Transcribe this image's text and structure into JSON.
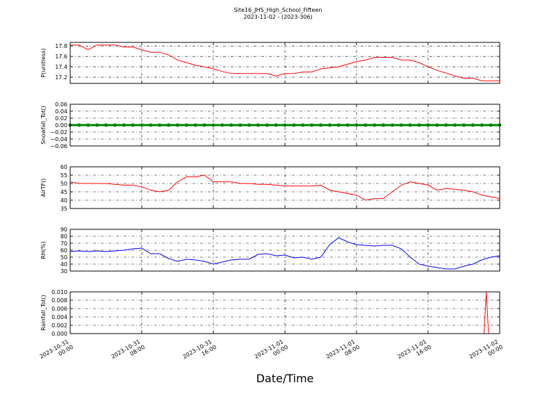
{
  "header": {
    "title": "Site16_JHS_High_School_Fifteen",
    "subtitle": "2023-11-02 - (2023-306)"
  },
  "chart_data": [
    {
      "type": "line",
      "ylabel": "P(unitless)",
      "color": "#ff0000",
      "xlim": [
        "2023-10-31 00:00",
        "2023-11-02 00:00"
      ],
      "xticks": [
        "2023-10-31 00:00",
        "2023-10-31 08:00",
        "2023-10-31 16:00",
        "2023-11-01 00:00",
        "2023-11-01 08:00",
        "2023-11-01 16:00",
        "2023-11-02 00:00"
      ],
      "ylim": [
        17.08,
        17.87
      ],
      "yticks": [
        17.2,
        17.4,
        17.6,
        17.8
      ],
      "grid": true,
      "x": [
        "2023-10-31 00:00",
        "2023-10-31 01:00",
        "2023-10-31 02:00",
        "2023-10-31 03:00",
        "2023-10-31 04:00",
        "2023-10-31 05:00",
        "2023-10-31 06:00",
        "2023-10-31 07:00",
        "2023-10-31 08:00",
        "2023-10-31 09:00",
        "2023-10-31 10:00",
        "2023-10-31 11:00",
        "2023-10-31 12:00",
        "2023-10-31 13:00",
        "2023-10-31 14:00",
        "2023-10-31 15:00",
        "2023-10-31 16:00",
        "2023-10-31 17:00",
        "2023-10-31 18:00",
        "2023-10-31 19:00",
        "2023-10-31 20:00",
        "2023-10-31 21:00",
        "2023-10-31 22:00",
        "2023-10-31 23:00",
        "2023-11-01 00:00",
        "2023-11-01 01:00",
        "2023-11-01 02:00",
        "2023-11-01 03:00",
        "2023-11-01 04:00",
        "2023-11-01 05:00",
        "2023-11-01 06:00",
        "2023-11-01 07:00",
        "2023-11-01 08:00",
        "2023-11-01 09:00",
        "2023-11-01 10:00",
        "2023-11-01 11:00",
        "2023-11-01 12:00",
        "2023-11-01 13:00",
        "2023-11-01 14:00",
        "2023-11-01 15:00",
        "2023-11-01 16:00",
        "2023-11-01 17:00",
        "2023-11-01 18:00",
        "2023-11-01 19:00",
        "2023-11-01 20:00",
        "2023-11-01 21:00",
        "2023-11-01 22:00",
        "2023-11-01 23:00",
        "2023-11-02 00:00"
      ],
      "values": [
        17.82,
        17.82,
        17.73,
        17.82,
        17.82,
        17.82,
        17.78,
        17.78,
        17.73,
        17.68,
        17.68,
        17.63,
        17.53,
        17.48,
        17.43,
        17.4,
        17.36,
        17.31,
        17.27,
        17.27,
        17.27,
        17.27,
        17.27,
        17.22,
        17.27,
        17.27,
        17.3,
        17.3,
        17.36,
        17.38,
        17.4,
        17.45,
        17.5,
        17.53,
        17.58,
        17.58,
        17.58,
        17.53,
        17.53,
        17.48,
        17.4,
        17.33,
        17.28,
        17.22,
        17.18,
        17.18,
        17.13,
        17.13,
        17.13
      ]
    },
    {
      "type": "scatterline",
      "ylabel": "Snowfall_Tot()",
      "color": "#008000",
      "xlim": [
        "2023-10-31 00:00",
        "2023-11-02 00:00"
      ],
      "xticks": [
        "2023-10-31 00:00",
        "2023-10-31 08:00",
        "2023-10-31 16:00",
        "2023-11-01 00:00",
        "2023-11-01 08:00",
        "2023-11-01 16:00",
        "2023-11-02 00:00"
      ],
      "ylim": [
        -0.06,
        0.06
      ],
      "yticks": [
        {
          "value": -0.06,
          "label": "−0.06"
        },
        {
          "value": -0.04,
          "label": "−0.04"
        },
        {
          "value": -0.02,
          "label": "−0.02"
        },
        {
          "value": 0,
          "label": "0.00"
        },
        0.02,
        0.04,
        0.06
      ],
      "grid": true,
      "x": [
        "2023-10-31 00:00",
        "2023-10-31 01:00",
        "2023-10-31 02:00",
        "2023-10-31 03:00",
        "2023-10-31 04:00",
        "2023-10-31 05:00",
        "2023-10-31 06:00",
        "2023-10-31 07:00",
        "2023-10-31 08:00",
        "2023-10-31 09:00",
        "2023-10-31 10:00",
        "2023-10-31 11:00",
        "2023-10-31 12:00",
        "2023-10-31 13:00",
        "2023-10-31 14:00",
        "2023-10-31 15:00",
        "2023-10-31 16:00",
        "2023-10-31 17:00",
        "2023-10-31 18:00",
        "2023-10-31 19:00",
        "2023-10-31 20:00",
        "2023-10-31 21:00",
        "2023-10-31 22:00",
        "2023-10-31 23:00",
        "2023-11-01 00:00",
        "2023-11-01 01:00",
        "2023-11-01 02:00",
        "2023-11-01 03:00",
        "2023-11-01 04:00",
        "2023-11-01 05:00",
        "2023-11-01 06:00",
        "2023-11-01 07:00",
        "2023-11-01 08:00",
        "2023-11-01 09:00",
        "2023-11-01 10:00",
        "2023-11-01 11:00",
        "2023-11-01 12:00",
        "2023-11-01 13:00",
        "2023-11-01 14:00",
        "2023-11-01 15:00",
        "2023-11-01 16:00",
        "2023-11-01 17:00",
        "2023-11-01 18:00",
        "2023-11-01 19:00",
        "2023-11-01 20:00",
        "2023-11-01 21:00",
        "2023-11-01 22:00",
        "2023-11-01 23:00",
        "2023-11-02 00:00"
      ],
      "values": [
        0,
        0,
        0,
        0,
        0,
        0,
        0,
        0,
        0,
        0,
        0,
        0,
        0,
        0,
        0,
        0,
        0,
        0,
        0,
        0,
        0,
        0,
        0,
        0,
        0,
        0,
        0,
        0,
        0,
        0,
        0,
        0,
        0,
        0,
        0,
        0,
        0,
        0,
        0,
        0,
        0,
        0,
        0,
        0,
        0,
        0,
        0,
        0,
        0
      ]
    },
    {
      "type": "line",
      "ylabel": "AirTF()",
      "color": "#ff0000",
      "xlim": [
        "2023-10-31 00:00",
        "2023-11-02 00:00"
      ],
      "xticks": [
        "2023-10-31 00:00",
        "2023-10-31 08:00",
        "2023-10-31 16:00",
        "2023-11-01 00:00",
        "2023-11-01 08:00",
        "2023-11-01 16:00",
        "2023-11-02 00:00"
      ],
      "ylim": [
        35,
        60
      ],
      "yticks": [
        35,
        40,
        45,
        50,
        55,
        60
      ],
      "grid": true,
      "x": [
        "2023-10-31 00:00",
        "2023-10-31 01:00",
        "2023-10-31 02:00",
        "2023-10-31 03:00",
        "2023-10-31 04:00",
        "2023-10-31 05:00",
        "2023-10-31 06:00",
        "2023-10-31 07:00",
        "2023-10-31 08:00",
        "2023-10-31 09:00",
        "2023-10-31 10:00",
        "2023-10-31 11:00",
        "2023-10-31 12:00",
        "2023-10-31 13:00",
        "2023-10-31 14:00",
        "2023-10-31 15:00",
        "2023-10-31 16:00",
        "2023-10-31 17:00",
        "2023-10-31 18:00",
        "2023-10-31 19:00",
        "2023-10-31 20:00",
        "2023-10-31 21:00",
        "2023-10-31 22:00",
        "2023-10-31 23:00",
        "2023-11-01 00:00",
        "2023-11-01 01:00",
        "2023-11-01 02:00",
        "2023-11-01 03:00",
        "2023-11-01 04:00",
        "2023-11-01 05:00",
        "2023-11-01 06:00",
        "2023-11-01 07:00",
        "2023-11-01 08:00",
        "2023-11-01 09:00",
        "2023-11-01 10:00",
        "2023-11-01 11:00",
        "2023-11-01 12:00",
        "2023-11-01 13:00",
        "2023-11-01 14:00",
        "2023-11-01 15:00",
        "2023-11-01 16:00",
        "2023-11-01 17:00",
        "2023-11-01 18:00",
        "2023-11-01 19:00",
        "2023-11-01 20:00",
        "2023-11-01 21:00",
        "2023-11-01 22:00",
        "2023-11-01 23:00",
        "2023-11-02 00:00"
      ],
      "values": [
        51,
        50,
        50,
        50,
        50,
        49.5,
        49,
        49,
        48,
        46,
        45,
        46,
        51,
        54,
        54,
        55,
        51,
        51,
        51,
        50,
        50,
        49.5,
        49.5,
        49,
        48.5,
        48.5,
        48.5,
        48.5,
        49,
        46,
        45,
        44,
        43,
        40,
        41,
        41,
        45,
        49,
        51,
        50,
        49,
        46,
        47,
        46.5,
        46,
        45,
        43,
        42,
        41
      ]
    },
    {
      "type": "line",
      "ylabel": "RH(%)",
      "color": "#0000ff",
      "xlim": [
        "2023-10-31 00:00",
        "2023-11-02 00:00"
      ],
      "xticks": [
        "2023-10-31 00:00",
        "2023-10-31 08:00",
        "2023-10-31 16:00",
        "2023-11-01 00:00",
        "2023-11-01 08:00",
        "2023-11-01 16:00",
        "2023-11-02 00:00"
      ],
      "ylim": [
        30,
        90
      ],
      "yticks": [
        30,
        40,
        50,
        60,
        70,
        80,
        90
      ],
      "grid": true,
      "x": [
        "2023-10-31 00:00",
        "2023-10-31 01:00",
        "2023-10-31 02:00",
        "2023-10-31 03:00",
        "2023-10-31 04:00",
        "2023-10-31 05:00",
        "2023-10-31 06:00",
        "2023-10-31 07:00",
        "2023-10-31 08:00",
        "2023-10-31 09:00",
        "2023-10-31 10:00",
        "2023-10-31 11:00",
        "2023-10-31 12:00",
        "2023-10-31 13:00",
        "2023-10-31 14:00",
        "2023-10-31 15:00",
        "2023-10-31 16:00",
        "2023-10-31 17:00",
        "2023-10-31 18:00",
        "2023-10-31 19:00",
        "2023-10-31 20:00",
        "2023-10-31 21:00",
        "2023-10-31 22:00",
        "2023-10-31 23:00",
        "2023-11-01 00:00",
        "2023-11-01 01:00",
        "2023-11-01 02:00",
        "2023-11-01 03:00",
        "2023-11-01 04:00",
        "2023-11-01 05:00",
        "2023-11-01 06:00",
        "2023-11-01 07:00",
        "2023-11-01 08:00",
        "2023-11-01 09:00",
        "2023-11-01 10:00",
        "2023-11-01 11:00",
        "2023-11-01 12:00",
        "2023-11-01 13:00",
        "2023-11-01 14:00",
        "2023-11-01 15:00",
        "2023-11-01 16:00",
        "2023-11-01 17:00",
        "2023-11-01 18:00",
        "2023-11-01 19:00",
        "2023-11-01 20:00",
        "2023-11-01 21:00",
        "2023-11-01 22:00",
        "2023-11-01 23:00",
        "2023-11-02 00:00"
      ],
      "values": [
        58,
        59,
        58,
        59,
        58,
        59,
        60,
        62,
        63,
        55,
        55,
        48,
        44,
        47,
        46,
        44,
        40,
        43,
        46,
        47,
        47,
        54,
        55,
        52,
        53,
        49,
        50,
        47,
        50,
        68,
        78,
        72,
        68,
        67,
        66,
        67,
        67,
        62,
        50,
        40,
        37,
        35,
        33,
        33,
        37,
        40,
        46,
        50,
        52
      ]
    },
    {
      "type": "line",
      "ylabel": "Rainfall_Tot()",
      "color": "#ff0000",
      "xlabel": "Date/Time",
      "xlim": [
        "2023-10-31 00:00",
        "2023-11-02 00:00"
      ],
      "xticks": [
        "2023-10-31 00:00",
        "2023-10-31 08:00",
        "2023-10-31 16:00",
        "2023-11-01 00:00",
        "2023-11-01 08:00",
        "2023-11-01 16:00",
        "2023-11-02 00:00"
      ],
      "ylim": [
        0,
        0.01
      ],
      "yticks": [
        {
          "value": 0,
          "label": "0.000"
        },
        {
          "value": 0.002,
          "label": "0.002"
        },
        {
          "value": 0.004,
          "label": "0.004"
        },
        {
          "value": 0.006,
          "label": "0.006"
        },
        {
          "value": 0.008,
          "label": "0.008"
        },
        {
          "value": 0.01,
          "label": "0.010"
        }
      ],
      "grid": true,
      "x": [
        "2023-10-31 00:00",
        "2023-11-01 22:15",
        "2023-11-01 22:30",
        "2023-11-01 22:45",
        "2023-11-02 00:00"
      ],
      "values": [
        0,
        0,
        0.01,
        0,
        0
      ]
    }
  ]
}
